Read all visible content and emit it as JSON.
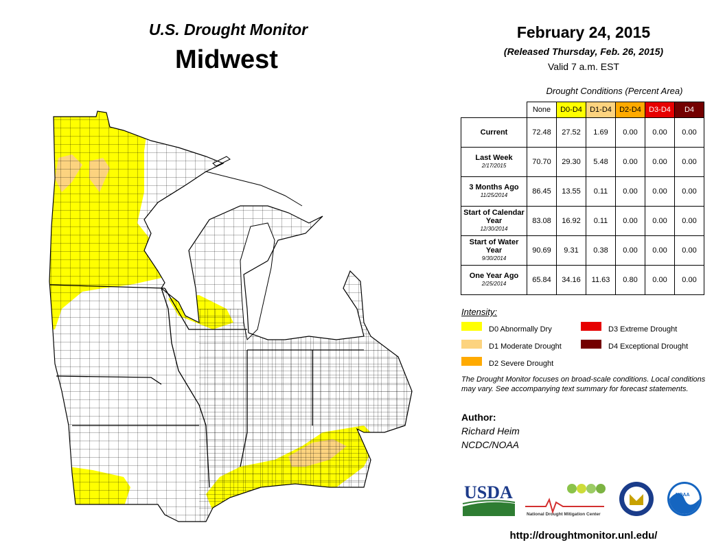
{
  "header": {
    "title_top": "U.S. Drought Monitor",
    "title_main": "Midwest",
    "date": "February 24, 2015",
    "released": "(Released Thursday, Feb. 26, 2015)",
    "valid": "Valid  7 a.m. EST"
  },
  "conditions": {
    "title": "Drought Conditions (Percent Area)",
    "columns": [
      "None",
      "D0-D4",
      "D1-D4",
      "D2-D4",
      "D3-D4",
      "D4"
    ],
    "rows": [
      {
        "label": "Current",
        "sub": "",
        "values": [
          "72.48",
          "27.52",
          "1.69",
          "0.00",
          "0.00",
          "0.00"
        ]
      },
      {
        "label": "Last Week",
        "sub": "2/17/2015",
        "values": [
          "70.70",
          "29.30",
          "5.48",
          "0.00",
          "0.00",
          "0.00"
        ]
      },
      {
        "label": "3 Months Ago",
        "sub": "11/25/2014",
        "values": [
          "86.45",
          "13.55",
          "0.11",
          "0.00",
          "0.00",
          "0.00"
        ]
      },
      {
        "label": "Start of Calendar Year",
        "sub": "12/30/2014",
        "values": [
          "83.08",
          "16.92",
          "0.11",
          "0.00",
          "0.00",
          "0.00"
        ]
      },
      {
        "label": "Start of Water Year",
        "sub": "9/30/2014",
        "values": [
          "90.69",
          "9.31",
          "0.38",
          "0.00",
          "0.00",
          "0.00"
        ]
      },
      {
        "label": "One Year Ago",
        "sub": "2/25/2014",
        "values": [
          "65.84",
          "34.16",
          "11.63",
          "0.80",
          "0.00",
          "0.00"
        ]
      }
    ]
  },
  "legend": {
    "title": "Intensity:",
    "items": [
      {
        "code": "D0",
        "label": "D0 Abnormally Dry",
        "color": "#ffff00"
      },
      {
        "code": "D1",
        "label": "D1 Moderate Drought",
        "color": "#fcd37f"
      },
      {
        "code": "D2",
        "label": "D2 Severe Drought",
        "color": "#ffaa00"
      },
      {
        "code": "D3",
        "label": "D3 Extreme Drought",
        "color": "#e60000"
      },
      {
        "code": "D4",
        "label": "D4 Exceptional Drought",
        "color": "#730000"
      }
    ]
  },
  "note": "The Drought Monitor focuses on broad-scale conditions. Local conditions may vary. See accompanying text summary for forecast statements.",
  "author": {
    "heading": "Author:",
    "name": "Richard Heim",
    "org": "NCDC/NOAA"
  },
  "logos": {
    "usda": "USDA",
    "ndmc": "National Drought Mitigation Center",
    "noaa": "NOAA"
  },
  "url": "http://droughtmonitor.unl.edu/",
  "colors": {
    "d0": "#ffff00",
    "d1": "#fcd37f",
    "d2": "#ffaa00",
    "d3": "#e60000",
    "d4": "#730000",
    "header_d0": "#ffff00",
    "header_d1": "#fcd37f",
    "header_d2": "#ffaa00",
    "header_d3": "#e60000",
    "header_d4": "#730000"
  }
}
